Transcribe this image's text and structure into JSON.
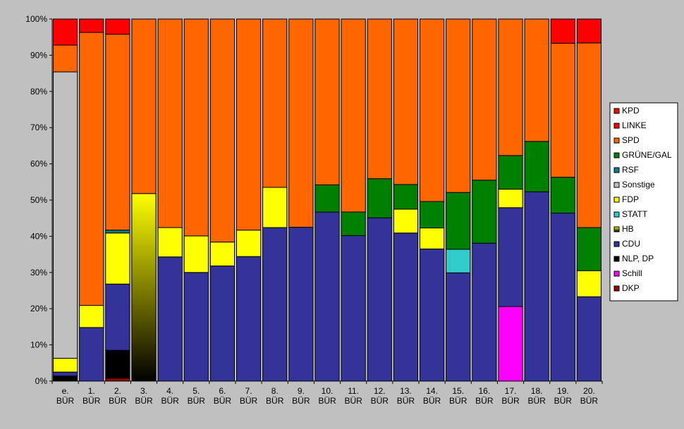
{
  "chart_data": {
    "type": "bar",
    "stacked": "percent",
    "title": "",
    "xlabel": "",
    "ylabel": "",
    "ylim": [
      0,
      100
    ],
    "y_ticks": [
      "0%",
      "10%",
      "20%",
      "30%",
      "40%",
      "50%",
      "60%",
      "70%",
      "80%",
      "90%",
      "100%"
    ],
    "grid": false,
    "legend_position": "right",
    "categories": [
      [
        "e.",
        "BÜR"
      ],
      [
        "1.",
        "BÜR"
      ],
      [
        "2.",
        "BÜR"
      ],
      [
        "3.",
        "BÜR"
      ],
      [
        "4.",
        "BÜR"
      ],
      [
        "5.",
        "BÜR"
      ],
      [
        "6.",
        "BÜR"
      ],
      [
        "7.",
        "BÜR"
      ],
      [
        "8.",
        "BÜR"
      ],
      [
        "9.",
        "BÜR"
      ],
      [
        "10.",
        "BÜR"
      ],
      [
        "11.",
        "BÜR"
      ],
      [
        "12.",
        "BÜR"
      ],
      [
        "13.",
        "BÜR"
      ],
      [
        "14.",
        "BÜR"
      ],
      [
        "15.",
        "BÜR"
      ],
      [
        "16.",
        "BÜR"
      ],
      [
        "17.",
        "BÜR"
      ],
      [
        "18.",
        "BÜR"
      ],
      [
        "19.",
        "BÜR"
      ],
      [
        "20.",
        "BÜR"
      ]
    ],
    "series": [
      {
        "name": "DKP",
        "color": "#990000",
        "values": [
          0,
          0,
          0.8,
          0,
          0,
          0,
          0,
          0,
          0,
          0,
          0,
          0,
          0,
          0,
          0,
          0,
          0,
          0,
          0,
          0,
          0
        ]
      },
      {
        "name": "Schill",
        "color": "#ff00ff",
        "values": [
          0,
          0,
          0,
          0,
          0,
          0,
          0,
          0,
          0,
          0,
          0,
          0,
          0,
          0,
          0,
          0,
          0,
          20.6,
          0,
          0,
          0
        ]
      },
      {
        "name": "NLP, DP",
        "color": "#000000",
        "values": [
          1.4,
          0,
          7.7,
          0,
          0,
          0,
          0,
          0,
          0,
          0,
          0,
          0,
          0,
          0,
          0,
          0,
          0,
          0,
          0,
          0,
          0
        ]
      },
      {
        "name": "CDU",
        "color": "#333399",
        "values": [
          1.1,
          14.8,
          18.3,
          0,
          34.3,
          30.0,
          31.8,
          34.4,
          42.4,
          42.5,
          46.7,
          40.2,
          45.1,
          40.9,
          36.5,
          29.9,
          38.1,
          27.3,
          52.3,
          46.4,
          23.3
        ]
      },
      {
        "name": "HB",
        "color": "#999900",
        "gradient": "yellow-to-black",
        "values": [
          0,
          0,
          0,
          51.8,
          0,
          0,
          0,
          0,
          0,
          0,
          0,
          0,
          0,
          0,
          0,
          0,
          0,
          0,
          0,
          0,
          0
        ]
      },
      {
        "name": "STATT",
        "color": "#33cccc",
        "values": [
          0,
          0,
          0,
          0,
          0,
          0,
          0,
          0,
          0,
          0,
          0,
          0,
          0,
          0,
          0,
          6.5,
          0,
          0,
          0,
          0,
          0
        ]
      },
      {
        "name": "FDP",
        "color": "#ffff00",
        "values": [
          3.8,
          6.1,
          14.1,
          0,
          8.1,
          10.1,
          6.6,
          7.3,
          11.1,
          0,
          0,
          0,
          0,
          6.6,
          5.8,
          0,
          0,
          5.1,
          0,
          0,
          7.2
        ]
      },
      {
        "name": "Sonstige",
        "color": "#c0c0c0",
        "values": [
          79.1,
          0,
          0,
          0,
          0,
          0,
          0,
          0,
          0,
          0,
          0,
          0,
          0,
          0,
          0,
          0,
          0,
          0,
          0,
          0,
          0
        ]
      },
      {
        "name": "RSF",
        "color": "#008080",
        "values": [
          0,
          0,
          0.8,
          0,
          0,
          0,
          0,
          0,
          0,
          0,
          0,
          0,
          0,
          0,
          0,
          0,
          0,
          0,
          0,
          0,
          0
        ]
      },
      {
        "name": "GRÜNE/GAL",
        "color": "#008000",
        "values": [
          0,
          0,
          0,
          0,
          0,
          0,
          0,
          0,
          0,
          0,
          7.5,
          6.5,
          10.8,
          6.8,
          7.3,
          15.7,
          17.4,
          9.3,
          13.9,
          9.9,
          11.9
        ]
      },
      {
        "name": "SPD",
        "color": "#ff6600",
        "values": [
          7.4,
          75.4,
          54.1,
          48.2,
          57.6,
          59.9,
          61.6,
          58.3,
          46.5,
          57.5,
          45.8,
          53.3,
          44.1,
          45.7,
          50.4,
          47.9,
          44.5,
          37.7,
          33.8,
          37.0,
          51.0
        ]
      },
      {
        "name": "LINKE",
        "color": "#ff0000",
        "values": [
          0,
          0,
          0,
          0,
          0,
          0,
          0,
          0,
          0,
          0,
          0,
          0,
          0,
          0,
          0,
          0,
          0,
          0,
          0,
          6.7,
          6.6
        ]
      },
      {
        "name": "KPD",
        "color": "#ff0000",
        "values": [
          7.2,
          3.7,
          4.2,
          0,
          0,
          0,
          0,
          0,
          0,
          0,
          0,
          0,
          0,
          0,
          0,
          0,
          0,
          0,
          0,
          0,
          0
        ]
      }
    ],
    "legend_order": [
      "KPD",
      "LINKE",
      "SPD",
      "GRÜNE/GAL",
      "RSF",
      "Sonstige",
      "FDP",
      "STATT",
      "HB",
      "CDU",
      "NLP, DP",
      "Schill",
      "DKP"
    ]
  }
}
